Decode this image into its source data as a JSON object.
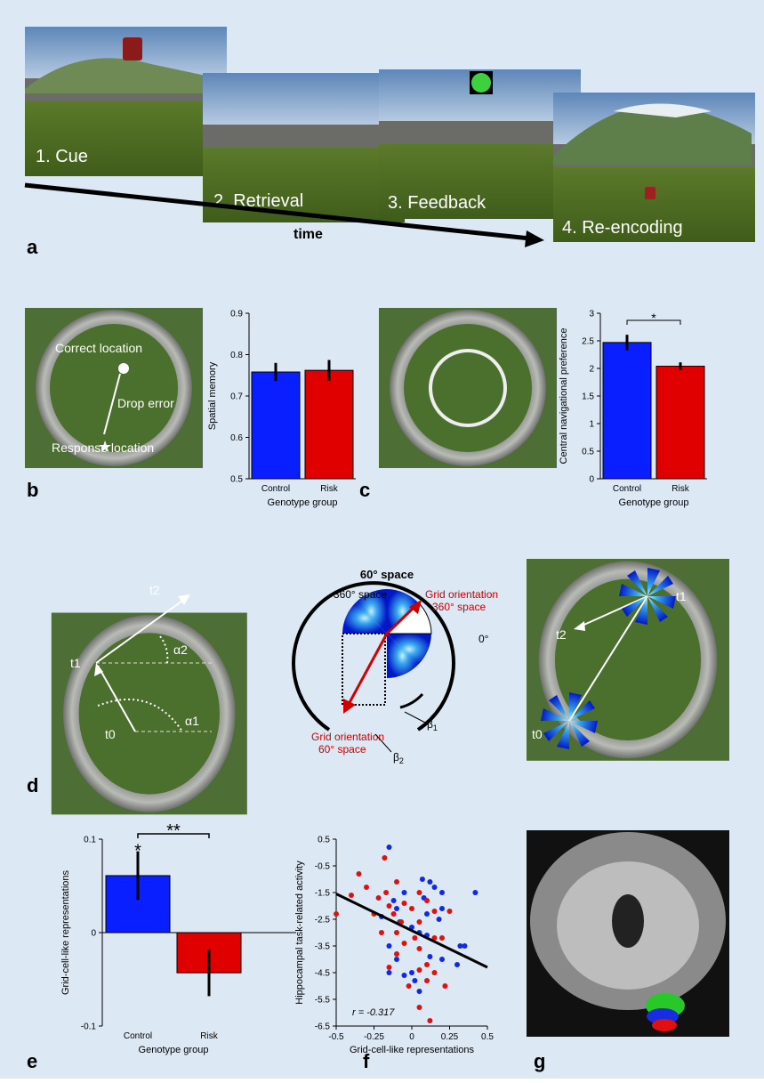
{
  "panel_a": {
    "label": "a",
    "frames": [
      "1. Cue",
      "2. Retrieval",
      "3. Feedback",
      "4. Re-encoding"
    ],
    "time": "time"
  },
  "panel_b": {
    "label": "b",
    "texts": [
      "Correct location",
      "Drop error",
      "Response location"
    ]
  },
  "panel_c": {
    "label": "c"
  },
  "panel_d": {
    "label": "d",
    "left": [
      "t2",
      "α2",
      "t1",
      "t0",
      "α1"
    ],
    "middle": {
      "outer": "60° space",
      "inner": "360° space",
      "grid_360": [
        "Grid orientation",
        "360° space"
      ],
      "zero": "0°",
      "grid_60": [
        "Grid orientation",
        "60° space"
      ],
      "beta": "β",
      "beta_subs": [
        "1",
        "2"
      ]
    },
    "right": [
      "t2",
      "t1",
      "t0"
    ]
  },
  "panel_e": {
    "label": "e"
  },
  "panel_f": {
    "label": "f"
  },
  "panel_g": {
    "label": "g"
  },
  "chart_data": [
    {
      "type": "bar",
      "y_label": "Spatial memory",
      "x_label": "Genotype group",
      "categories": [
        "Control",
        "Risk"
      ],
      "values": [
        0.758,
        0.762
      ],
      "errors": [
        0.022,
        0.025
      ],
      "colors": [
        "#0a1fff",
        "#e00000"
      ],
      "ylim": [
        0.5,
        0.9
      ],
      "yticks": [
        0.5,
        0.6,
        0.7,
        0.8,
        0.9
      ]
    },
    {
      "type": "bar",
      "y_label": "Central navigational preference",
      "x_label": "Genotype group",
      "categories": [
        "Control",
        "Risk"
      ],
      "values": [
        2.47,
        2.04
      ],
      "errors": [
        0.14,
        0.07
      ],
      "colors": [
        "#0a1fff",
        "#e00000"
      ],
      "ylim": [
        0,
        3
      ],
      "yticks": [
        0,
        0.5,
        1,
        1.5,
        2,
        2.5,
        3
      ],
      "annotations": [
        "*"
      ]
    },
    {
      "type": "bar",
      "y_label": "Grid-cell-like representations",
      "x_label": "Genotype group",
      "categories": [
        "Control",
        "Risk"
      ],
      "values": [
        0.061,
        -0.043
      ],
      "errors": [
        0.026,
        0.025
      ],
      "colors": [
        "#0a1fff",
        "#e00000"
      ],
      "ylim": [
        -0.1,
        0.1
      ],
      "yticks": [
        -0.1,
        0,
        0.1
      ],
      "annotations": [
        "*",
        "**"
      ]
    },
    {
      "type": "scatter",
      "y_label": "Hippocampal task-related activity",
      "x_label": "Grid-cell-like representations",
      "xlim": [
        -0.5,
        0.5
      ],
      "xticks": [
        -0.5,
        -0.25,
        0,
        0.25,
        0.5
      ],
      "ylim": [
        -6.5,
        0.5
      ],
      "yticks": [
        -6.5,
        -5.5,
        -4.5,
        -3.5,
        -2.5,
        -1.5,
        -0.5,
        0.5
      ],
      "series": [
        {
          "color": "#1028e8",
          "x": [
            -0.15,
            0.07,
            0.12,
            0.15,
            0.2,
            0.42,
            -0.12,
            -0.05,
            0.08,
            0.2,
            0.1,
            -0.2,
            0.18,
            0,
            0.05,
            -0.08,
            0.1,
            0.32,
            0.35,
            0.3,
            -0.1,
            0,
            -0.05,
            -0.15,
            0.02,
            0.05,
            -0.15,
            0.12,
            0.2,
            -0.1
          ],
          "y": [
            0.2,
            -1.0,
            -1.1,
            -1.3,
            -1.5,
            -1.5,
            -1.8,
            -1.5,
            -1.7,
            -2.1,
            -2.3,
            -2.4,
            -2.5,
            -2.8,
            -3.0,
            -2.6,
            -3.1,
            -3.5,
            -3.5,
            -4.2,
            -4.0,
            -4.5,
            -4.6,
            -4.5,
            -4.8,
            -5.2,
            -3.5,
            -3.9,
            -4.0,
            -2.1
          ]
        },
        {
          "color": "#e01010",
          "x": [
            -0.18,
            -0.35,
            -0.3,
            -0.17,
            -0.1,
            -0.22,
            -0.4,
            -0.05,
            0.05,
            0.1,
            -0.15,
            -0.12,
            0,
            0.15,
            0.25,
            -0.25,
            -0.07,
            0.05,
            -0.1,
            0.02,
            0.15,
            -0.2,
            -0.05,
            0.05,
            0.2,
            -0.1,
            0.1,
            -0.15,
            0.05,
            0.15,
            0.1,
            -0.02,
            0.05,
            0.12,
            -0.5,
            0.22
          ],
          "y": [
            -0.2,
            -0.8,
            -1.3,
            -1.5,
            -1.1,
            -1.7,
            -1.6,
            -1.9,
            -1.5,
            -1.8,
            -2.0,
            -2.3,
            -2.1,
            -2.2,
            -2.2,
            -2.3,
            -2.6,
            -2.6,
            -3.0,
            -3.2,
            -3.2,
            -3.0,
            -3.4,
            -3.6,
            -3.2,
            -3.8,
            -4.2,
            -4.3,
            -4.4,
            -4.5,
            -4.8,
            -5.0,
            -5.8,
            -6.3,
            -2.3,
            -5.0
          ]
        }
      ],
      "trend_line": {
        "x": [
          -0.5,
          0.5
        ],
        "y": [
          -1.55,
          -4.3
        ]
      },
      "annotations": [
        "r = -0.317"
      ]
    }
  ]
}
